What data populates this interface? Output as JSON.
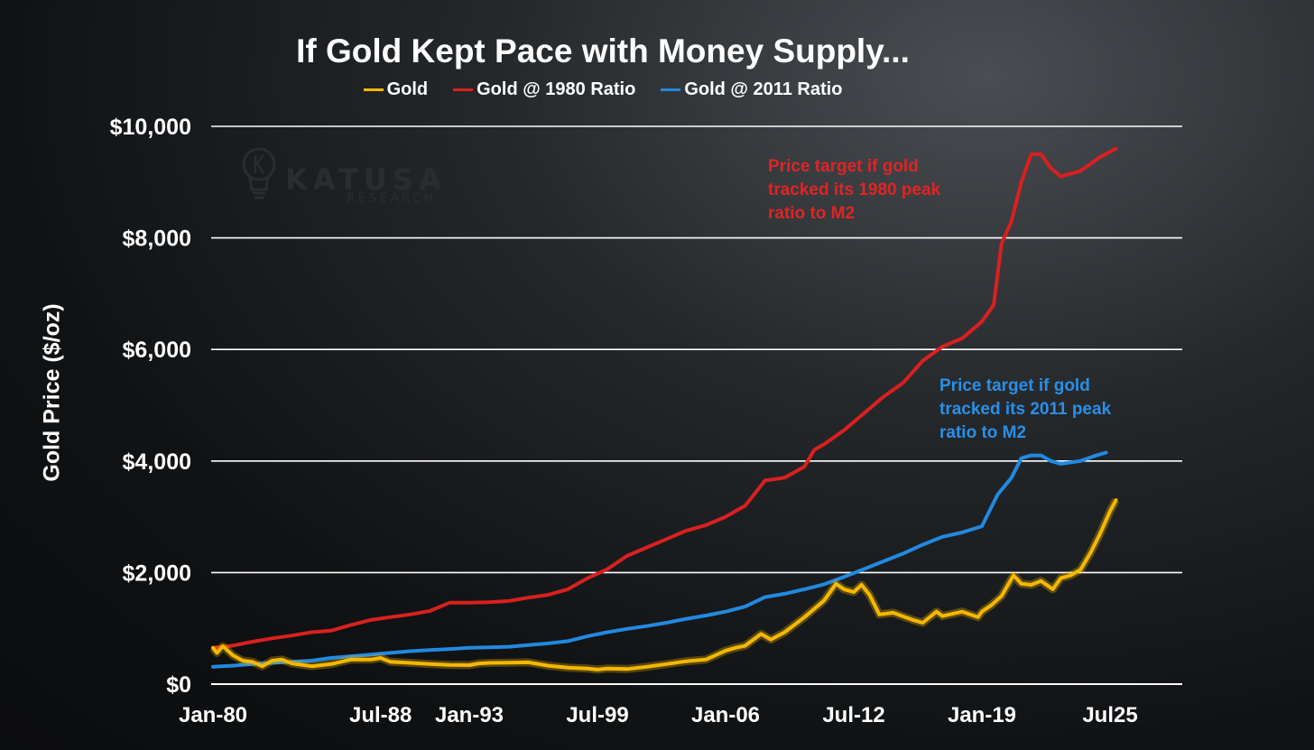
{
  "chart_data": {
    "type": "line",
    "title": "If Gold Kept Pace with Money Supply...",
    "ylabel": "Gold Price ($/oz)",
    "xlabel": "",
    "ylim": [
      0,
      10000
    ],
    "xlim": [
      1980.0,
      2027.0
    ],
    "yticks": [
      0,
      2000,
      4000,
      6000,
      8000,
      10000
    ],
    "ytick_labels": [
      "$0",
      "$2,000",
      "$4,000",
      "$6,000",
      "$8,000",
      "$10,000"
    ],
    "xticks": [
      1980.0,
      1988.5,
      1993.0,
      1999.5,
      2006.0,
      2012.5,
      2019.0,
      2025.5
    ],
    "xtick_labels": [
      "Jan-80",
      "Jul-88",
      "Jan-93",
      "Jul-99",
      "Jan-06",
      "Jul-12",
      "Jan-19",
      "Jul25"
    ],
    "grid": true,
    "legend_position": "top-center",
    "series": [
      {
        "name": "Gold",
        "color": "#f5b800",
        "points": [
          [
            1980.0,
            650
          ],
          [
            1980.2,
            560
          ],
          [
            1980.5,
            680
          ],
          [
            1981.0,
            520
          ],
          [
            1981.5,
            420
          ],
          [
            1982.0,
            400
          ],
          [
            1982.5,
            320
          ],
          [
            1983.0,
            420
          ],
          [
            1983.5,
            440
          ],
          [
            1984.0,
            370
          ],
          [
            1985.0,
            320
          ],
          [
            1986.0,
            360
          ],
          [
            1987.0,
            440
          ],
          [
            1987.5,
            440
          ],
          [
            1988.0,
            440
          ],
          [
            1988.5,
            470
          ],
          [
            1989.0,
            400
          ],
          [
            1990.0,
            380
          ],
          [
            1991.0,
            360
          ],
          [
            1992.0,
            345
          ],
          [
            1993.0,
            340
          ],
          [
            1993.5,
            370
          ],
          [
            1994.0,
            380
          ],
          [
            1995.0,
            385
          ],
          [
            1996.0,
            390
          ],
          [
            1997.0,
            330
          ],
          [
            1998.0,
            295
          ],
          [
            1999.0,
            280
          ],
          [
            1999.5,
            260
          ],
          [
            2000.0,
            280
          ],
          [
            2001.0,
            270
          ],
          [
            2002.0,
            310
          ],
          [
            2003.0,
            360
          ],
          [
            2004.0,
            410
          ],
          [
            2005.0,
            440
          ],
          [
            2006.0,
            600
          ],
          [
            2006.5,
            650
          ],
          [
            2007.0,
            690
          ],
          [
            2007.8,
            900
          ],
          [
            2008.3,
            800
          ],
          [
            2009.0,
            930
          ],
          [
            2010.0,
            1200
          ],
          [
            2011.0,
            1500
          ],
          [
            2011.6,
            1800
          ],
          [
            2012.0,
            1700
          ],
          [
            2012.5,
            1650
          ],
          [
            2012.9,
            1780
          ],
          [
            2013.3,
            1600
          ],
          [
            2013.8,
            1250
          ],
          [
            2014.5,
            1280
          ],
          [
            2015.5,
            1150
          ],
          [
            2016.0,
            1100
          ],
          [
            2016.7,
            1300
          ],
          [
            2017.0,
            1220
          ],
          [
            2018.0,
            1300
          ],
          [
            2018.8,
            1200
          ],
          [
            2019.0,
            1300
          ],
          [
            2019.5,
            1420
          ],
          [
            2020.0,
            1580
          ],
          [
            2020.6,
            1950
          ],
          [
            2021.0,
            1800
          ],
          [
            2021.5,
            1780
          ],
          [
            2022.0,
            1850
          ],
          [
            2022.6,
            1700
          ],
          [
            2023.0,
            1900
          ],
          [
            2023.5,
            1950
          ],
          [
            2024.0,
            2050
          ],
          [
            2024.5,
            2350
          ],
          [
            2025.0,
            2700
          ],
          [
            2025.5,
            3100
          ],
          [
            2025.8,
            3300
          ]
        ]
      },
      {
        "name": "Gold @ 1980 Ratio",
        "color": "#d92020",
        "points": [
          [
            1980.0,
            650
          ],
          [
            1981.0,
            690
          ],
          [
            1982.0,
            760
          ],
          [
            1983.0,
            820
          ],
          [
            1984.0,
            870
          ],
          [
            1985.0,
            930
          ],
          [
            1986.0,
            960
          ],
          [
            1987.0,
            1060
          ],
          [
            1988.0,
            1150
          ],
          [
            1989.0,
            1200
          ],
          [
            1990.0,
            1250
          ],
          [
            1991.0,
            1310
          ],
          [
            1992.0,
            1460
          ],
          [
            1993.0,
            1460
          ],
          [
            1994.0,
            1470
          ],
          [
            1995.0,
            1490
          ],
          [
            1996.0,
            1550
          ],
          [
            1997.0,
            1600
          ],
          [
            1998.0,
            1700
          ],
          [
            1999.0,
            1900
          ],
          [
            2000.0,
            2060
          ],
          [
            2001.0,
            2300
          ],
          [
            2002.0,
            2450
          ],
          [
            2003.0,
            2600
          ],
          [
            2004.0,
            2750
          ],
          [
            2005.0,
            2850
          ],
          [
            2006.0,
            3000
          ],
          [
            2007.0,
            3200
          ],
          [
            2008.0,
            3650
          ],
          [
            2009.0,
            3700
          ],
          [
            2010.0,
            3900
          ],
          [
            2010.5,
            4200
          ],
          [
            2011.0,
            4300
          ],
          [
            2012.0,
            4550
          ],
          [
            2013.0,
            4850
          ],
          [
            2014.0,
            5150
          ],
          [
            2015.0,
            5400
          ],
          [
            2016.0,
            5800
          ],
          [
            2017.0,
            6050
          ],
          [
            2018.0,
            6200
          ],
          [
            2019.0,
            6500
          ],
          [
            2019.6,
            6800
          ],
          [
            2020.0,
            7900
          ],
          [
            2020.5,
            8300
          ],
          [
            2021.0,
            9000
          ],
          [
            2021.5,
            9500
          ],
          [
            2022.0,
            9500
          ],
          [
            2022.5,
            9250
          ],
          [
            2023.0,
            9100
          ],
          [
            2024.0,
            9200
          ],
          [
            2025.0,
            9450
          ],
          [
            2025.8,
            9600
          ]
        ]
      },
      {
        "name": "Gold @ 2011 Ratio",
        "color": "#2289e0",
        "points": [
          [
            1980.0,
            310
          ],
          [
            1981.0,
            330
          ],
          [
            1982.0,
            360
          ],
          [
            1983.0,
            380
          ],
          [
            1984.0,
            400
          ],
          [
            1985.0,
            420
          ],
          [
            1986.0,
            470
          ],
          [
            1987.0,
            500
          ],
          [
            1988.0,
            530
          ],
          [
            1989.0,
            560
          ],
          [
            1990.0,
            590
          ],
          [
            1991.0,
            610
          ],
          [
            1992.0,
            630
          ],
          [
            1993.0,
            650
          ],
          [
            1994.0,
            660
          ],
          [
            1995.0,
            670
          ],
          [
            1996.0,
            700
          ],
          [
            1997.0,
            730
          ],
          [
            1998.0,
            770
          ],
          [
            1999.0,
            860
          ],
          [
            2000.0,
            930
          ],
          [
            2001.0,
            990
          ],
          [
            2002.0,
            1040
          ],
          [
            2003.0,
            1100
          ],
          [
            2004.0,
            1170
          ],
          [
            2005.0,
            1230
          ],
          [
            2006.0,
            1300
          ],
          [
            2007.0,
            1390
          ],
          [
            2008.0,
            1560
          ],
          [
            2009.0,
            1620
          ],
          [
            2010.0,
            1700
          ],
          [
            2011.0,
            1790
          ],
          [
            2012.0,
            1920
          ],
          [
            2013.0,
            2060
          ],
          [
            2014.0,
            2200
          ],
          [
            2015.0,
            2340
          ],
          [
            2016.0,
            2500
          ],
          [
            2017.0,
            2640
          ],
          [
            2018.0,
            2720
          ],
          [
            2019.0,
            2830
          ],
          [
            2019.8,
            3400
          ],
          [
            2020.5,
            3700
          ],
          [
            2021.0,
            4050
          ],
          [
            2021.5,
            4100
          ],
          [
            2022.0,
            4100
          ],
          [
            2022.5,
            4000
          ],
          [
            2023.0,
            3950
          ],
          [
            2024.0,
            4000
          ],
          [
            2024.8,
            4100
          ],
          [
            2025.3,
            4150
          ]
        ]
      }
    ],
    "annotations": [
      {
        "series": "Gold @ 1980 Ratio",
        "lines": [
          "Price target if gold",
          "tracked its 1980 peak",
          "ratio to M2"
        ]
      },
      {
        "series": "Gold @ 2011 Ratio",
        "lines": [
          "Price target if gold",
          "tracked its 2011 peak",
          "ratio to M2"
        ]
      }
    ]
  },
  "logo": {
    "main": "KATUSA",
    "sub": "RESEARCH"
  }
}
